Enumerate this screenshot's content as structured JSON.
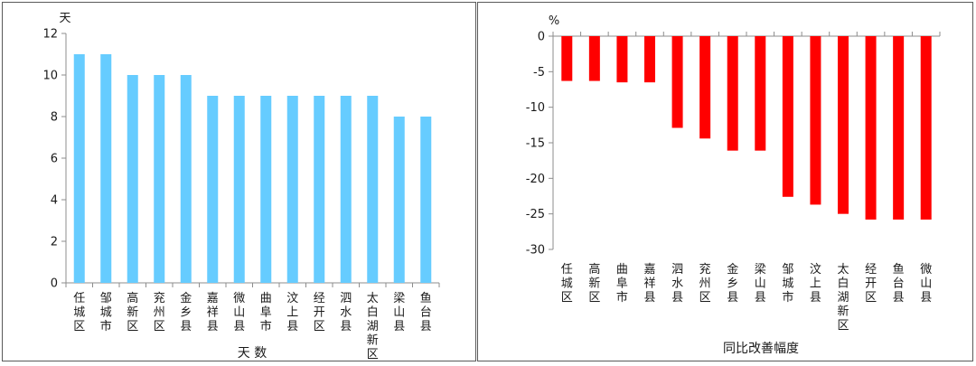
{
  "chart_data": [
    {
      "type": "bar",
      "ylabel": "天",
      "xlabel": "天 数",
      "ylim": [
        0,
        12
      ],
      "yticks": [
        0,
        2,
        4,
        6,
        8,
        10,
        12
      ],
      "grid": false,
      "bar_color": "#66ccff",
      "categories": [
        "任城区",
        "邹城市",
        "高新区",
        "兖州区",
        "金乡县",
        "嘉祥县",
        "微山县",
        "曲阜市",
        "汶上县",
        "经开区",
        "泗水县",
        "太白湖新区",
        "梁山县",
        "鱼台县"
      ],
      "values": [
        11,
        11,
        10,
        10,
        10,
        9,
        9,
        9,
        9,
        9,
        9,
        9,
        8,
        8
      ]
    },
    {
      "type": "bar",
      "ylabel": "%",
      "xlabel": "同比改善幅度",
      "ylim": [
        -30,
        0
      ],
      "yticks": [
        0,
        -5,
        -10,
        -15,
        -20,
        -25,
        -30
      ],
      "grid": false,
      "bar_color": "#ff0000",
      "categories": [
        "任城区",
        "高新区",
        "曲阜市",
        "嘉祥县",
        "泗水县",
        "兖州区",
        "金乡县",
        "梁山县",
        "邹城市",
        "汶上县",
        "太白湖新区",
        "经开区",
        "鱼台县",
        "微山县"
      ],
      "values": [
        -6.3,
        -6.3,
        -6.5,
        -6.5,
        -12.9,
        -14.4,
        -16.1,
        -16.1,
        -22.6,
        -23.7,
        -25.0,
        -25.8,
        -25.8,
        -25.8
      ]
    }
  ]
}
